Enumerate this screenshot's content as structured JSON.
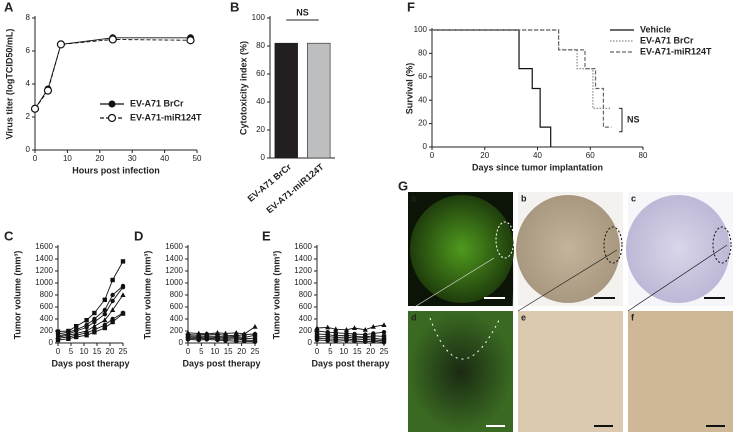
{
  "chart_data": [
    {
      "panel": "A",
      "type": "line",
      "xlabel": "Hours post infection",
      "ylabel": "Virus titer (logTCID50/mL)",
      "xlim": [
        0,
        50
      ],
      "xticks": [
        0,
        10,
        20,
        30,
        40,
        50
      ],
      "ylim": [
        0,
        8
      ],
      "yticks": [
        0,
        2,
        4,
        6,
        8
      ],
      "series": [
        {
          "name": "EV-A71 BrCr",
          "color": "#111111",
          "style": "solid",
          "marker": "filled-circle",
          "x": [
            0,
            4,
            8,
            24,
            48
          ],
          "values": [
            2.5,
            3.7,
            6.4,
            6.8,
            6.8
          ]
        },
        {
          "name": "EV-A71-miR124T",
          "color": "#111111",
          "style": "dashed",
          "marker": "open-circle",
          "x": [
            0,
            4,
            8,
            24,
            48
          ],
          "values": [
            2.5,
            3.6,
            6.4,
            6.7,
            6.65
          ]
        }
      ]
    },
    {
      "panel": "B",
      "type": "bar",
      "ylabel": "Cytotoxicity index (%)",
      "annotation": "NS",
      "categories": [
        "EV-A71 BrCr",
        "EV-A71-miR124T"
      ],
      "values": [
        82,
        82
      ],
      "colors": [
        "#231f20",
        "#bcbec0"
      ],
      "ylim": [
        0,
        100
      ],
      "yticks": [
        0,
        20,
        40,
        60,
        80,
        100
      ]
    },
    {
      "panel": "F",
      "type": "step",
      "xlabel": "Days since tumor implantation",
      "ylabel": "Survival (%)",
      "annotation": "NS",
      "xlim": [
        0,
        80
      ],
      "xticks": [
        0,
        20,
        40,
        60,
        80
      ],
      "ylim": [
        0,
        100
      ],
      "yticks": [
        0,
        20,
        40,
        60,
        80,
        100
      ],
      "series": [
        {
          "name": "Vehicle",
          "color": "#111111",
          "style": "solid",
          "x": [
            0,
            33,
            38,
            41,
            45
          ],
          "values": [
            100,
            67,
            50,
            17,
            0
          ]
        },
        {
          "name": "EV-A71 BrCr",
          "color": "#888888",
          "style": "dotted",
          "x": [
            0,
            48,
            55,
            61,
            68
          ],
          "values": [
            100,
            83,
            67,
            33,
            33
          ]
        },
        {
          "name": "EV-A71-miR124T",
          "color": "#666666",
          "style": "dashed",
          "x": [
            0,
            48,
            58,
            62,
            65,
            68
          ],
          "values": [
            100,
            83,
            67,
            50,
            17,
            17
          ]
        }
      ]
    },
    {
      "panel": "C",
      "type": "line",
      "xlabel": "Days post therapy",
      "ylabel": "Tumor volume (mm³)",
      "xlim": [
        0,
        25
      ],
      "xticks": [
        0,
        5,
        10,
        15,
        20,
        25
      ],
      "ylim": [
        0,
        1600
      ],
      "yticks": [
        0,
        200,
        400,
        600,
        800,
        1000,
        1200,
        1400,
        1600
      ],
      "x": [
        0,
        4,
        7,
        11,
        14,
        18,
        21,
        25
      ],
      "series": [
        {
          "color": "#111111",
          "style": "solid",
          "marker": "square",
          "values": [
            190,
            200,
            280,
            380,
            500,
            720,
            1050,
            1360
          ]
        },
        {
          "color": "#111111",
          "style": "solid",
          "marker": "circle",
          "values": [
            150,
            180,
            220,
            300,
            400,
            550,
            800,
            950
          ]
        },
        {
          "color": "#111111",
          "style": "solid",
          "marker": "circle",
          "values": [
            120,
            150,
            200,
            260,
            350,
            480,
            700,
            930
          ]
        },
        {
          "color": "#111111",
          "style": "solid",
          "marker": "triangle",
          "values": [
            100,
            130,
            160,
            200,
            280,
            380,
            550,
            800
          ]
        },
        {
          "color": "#111111",
          "style": "solid",
          "marker": "circle",
          "values": [
            80,
            100,
            130,
            170,
            220,
            300,
            400,
            500
          ]
        },
        {
          "color": "#111111",
          "style": "solid",
          "marker": "square",
          "values": [
            50,
            70,
            100,
            130,
            180,
            250,
            350,
            490
          ]
        }
      ]
    },
    {
      "panel": "D",
      "type": "line",
      "xlabel": "Days post therapy",
      "ylabel": "Tumor volume (mm³)",
      "xlim": [
        0,
        25
      ],
      "xticks": [
        0,
        5,
        10,
        15,
        20,
        25
      ],
      "ylim": [
        0,
        1600
      ],
      "yticks": [
        0,
        200,
        400,
        600,
        800,
        1000,
        1200,
        1400,
        1600
      ],
      "x": [
        0,
        4,
        7,
        11,
        14,
        18,
        21,
        25
      ],
      "series": [
        {
          "color": "#111111",
          "style": "solid",
          "marker": "triangle",
          "values": [
            170,
            160,
            150,
            170,
            160,
            170,
            150,
            270
          ]
        },
        {
          "color": "#111111",
          "style": "solid",
          "marker": "circle",
          "values": [
            140,
            130,
            150,
            140,
            130,
            120,
            140,
            150
          ]
        },
        {
          "color": "#111111",
          "style": "solid",
          "marker": "square",
          "values": [
            120,
            110,
            120,
            110,
            100,
            110,
            90,
            130
          ]
        },
        {
          "color": "#111111",
          "style": "solid",
          "marker": "circle",
          "values": [
            100,
            90,
            100,
            90,
            80,
            90,
            70,
            80
          ]
        },
        {
          "color": "#111111",
          "style": "solid",
          "marker": "square",
          "values": [
            80,
            70,
            80,
            70,
            60,
            70,
            50,
            40
          ]
        },
        {
          "color": "#111111",
          "style": "solid",
          "marker": "circle",
          "values": [
            60,
            50,
            60,
            50,
            40,
            30,
            30,
            20
          ]
        }
      ]
    },
    {
      "panel": "E",
      "type": "line",
      "xlabel": "Days post therapy",
      "ylabel": "Tumor volume (mm³)",
      "xlim": [
        0,
        25
      ],
      "xticks": [
        0,
        5,
        10,
        15,
        20,
        25
      ],
      "ylim": [
        0,
        1600
      ],
      "yticks": [
        0,
        200,
        400,
        600,
        800,
        1000,
        1200,
        1400,
        1600
      ],
      "x": [
        0,
        4,
        7,
        11,
        14,
        18,
        21,
        25
      ],
      "series": [
        {
          "color": "#111111",
          "style": "solid",
          "marker": "triangle",
          "values": [
            250,
            260,
            230,
            220,
            250,
            220,
            270,
            300
          ]
        },
        {
          "color": "#111111",
          "style": "solid",
          "marker": "circle",
          "values": [
            200,
            180,
            170,
            160,
            150,
            140,
            160,
            180
          ]
        },
        {
          "color": "#111111",
          "style": "solid",
          "marker": "square",
          "values": [
            150,
            140,
            120,
            130,
            110,
            100,
            120,
            110
          ]
        },
        {
          "color": "#111111",
          "style": "solid",
          "marker": "circle",
          "values": [
            100,
            110,
            90,
            100,
            80,
            90,
            80,
            60
          ]
        },
        {
          "color": "#111111",
          "style": "solid",
          "marker": "square",
          "values": [
            80,
            70,
            60,
            70,
            50,
            60,
            50,
            40
          ]
        },
        {
          "color": "#111111",
          "style": "solid",
          "marker": "circle",
          "values": [
            50,
            40,
            30,
            40,
            30,
            20,
            30,
            10
          ]
        }
      ]
    }
  ],
  "figure_g": {
    "label": "G",
    "panels": [
      "a",
      "b",
      "c",
      "d",
      "e",
      "f"
    ]
  }
}
